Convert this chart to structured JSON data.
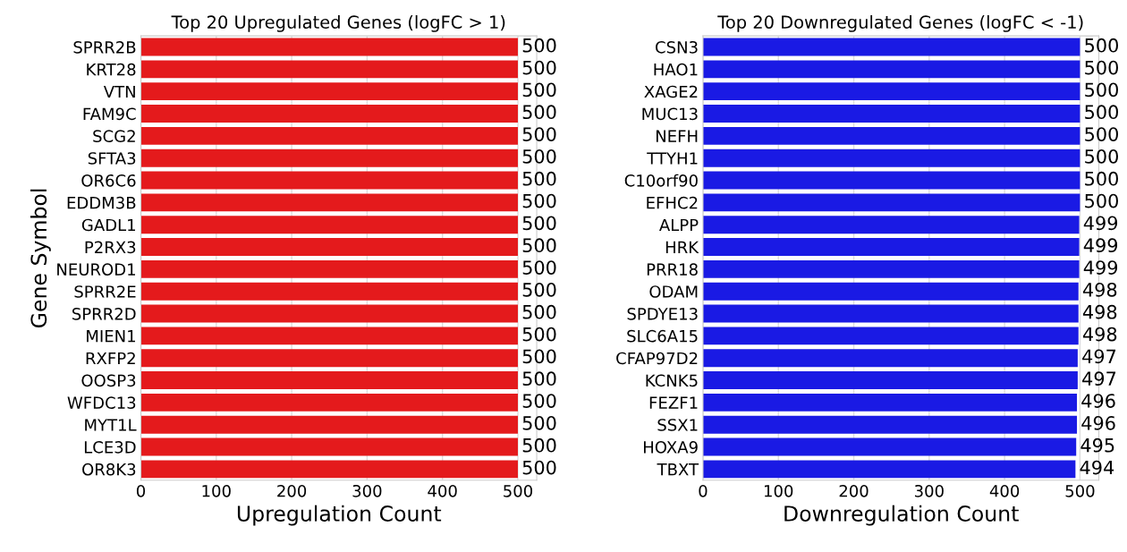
{
  "chart_data": [
    {
      "type": "bar",
      "orientation": "horizontal",
      "title": "Top 20 Upregulated Genes (logFC > 1)",
      "xlabel": "Upregulation Count",
      "ylabel": "Gene Symbol",
      "categories": [
        "SPRR2B",
        "KRT28",
        "VTN",
        "FAM9C",
        "SCG2",
        "SFTA3",
        "OR6C6",
        "EDDM3B",
        "GADL1",
        "P2RX3",
        "NEUROD1",
        "SPRR2E",
        "SPRR2D",
        "MIEN1",
        "RXFP2",
        "OOSP3",
        "WFDC13",
        "MYT1L",
        "LCE3D",
        "OR8K3"
      ],
      "values": [
        500,
        500,
        500,
        500,
        500,
        500,
        500,
        500,
        500,
        500,
        500,
        500,
        500,
        500,
        500,
        500,
        500,
        500,
        500,
        500
      ],
      "color": "#e41a1c",
      "xlim": [
        0,
        525
      ],
      "xticks": [
        0,
        100,
        200,
        300,
        400,
        500
      ],
      "grid": "x",
      "data_labels": true
    },
    {
      "type": "bar",
      "orientation": "horizontal",
      "title": "Top 20 Downregulated Genes (logFC < -1)",
      "xlabel": "Downregulation Count",
      "categories": [
        "CSN3",
        "HAO1",
        "XAGE2",
        "MUC13",
        "NEFH",
        "TTYH1",
        "C10orf90",
        "EFHC2",
        "ALPP",
        "HRK",
        "PRR18",
        "ODAM",
        "SPDYE13",
        "SLC6A15",
        "CFAP97D2",
        "KCNK5",
        "FEZF1",
        "SSX1",
        "HOXA9",
        "TBXT"
      ],
      "values": [
        500,
        500,
        500,
        500,
        500,
        500,
        500,
        500,
        499,
        499,
        499,
        498,
        498,
        498,
        497,
        497,
        496,
        496,
        495,
        494
      ],
      "color": "#1a1ae4",
      "xlim": [
        0,
        525
      ],
      "xticks": [
        0,
        100,
        200,
        300,
        400,
        500
      ],
      "grid": "x",
      "data_labels": true
    }
  ]
}
